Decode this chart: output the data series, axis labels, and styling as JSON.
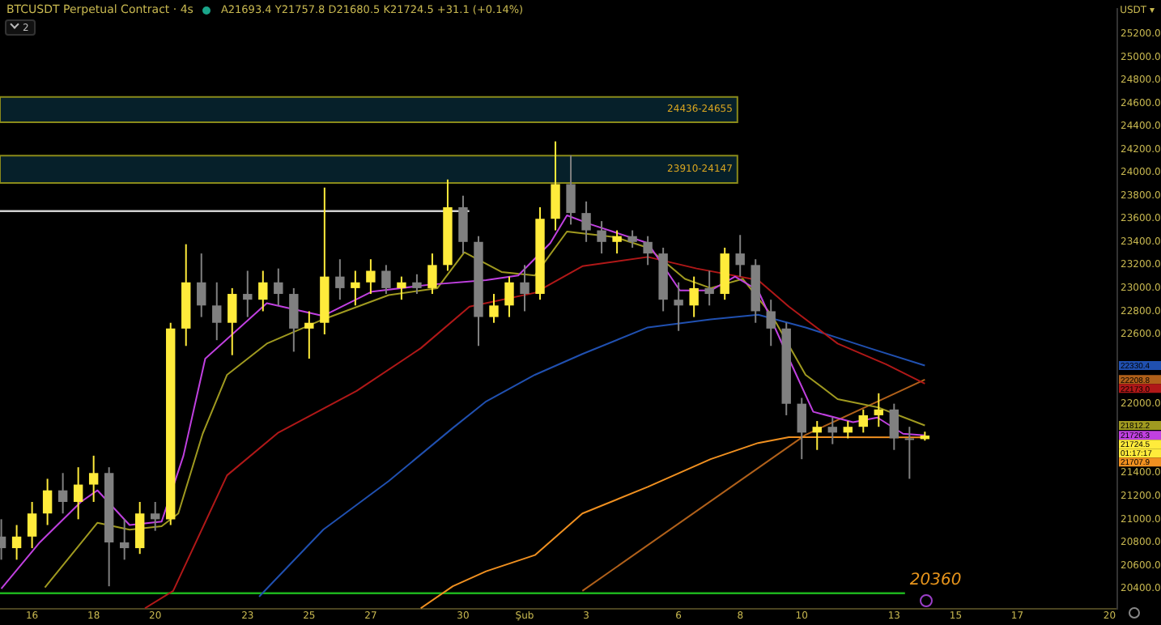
{
  "chart_data": {
    "type": "candlestick",
    "title": "BTCUSDT Perpetual Contract · 4s",
    "subtitle": "A21693.4 Y21757.8 D21680.5 K21724.5 +31.1 (+0.14%)",
    "ylabel": "USDT ▾",
    "x": [
      "--01-15T00:00",
      "--01-15T12:00",
      "--01-16T00:00",
      "--01-16T12:00",
      "--01-17T00:00",
      "--01-17T12:00",
      "--01-18T00:00",
      "--01-18T12:00",
      "--01-19T00:00",
      "--01-19T12:00",
      "--01-20T00:00",
      "--01-20T12:00",
      "--01-21T00:00",
      "--01-21T12:00",
      "--01-22T00:00",
      "--01-22T12:00",
      "--01-23T00:00",
      "--01-23T12:00",
      "--01-24T00:00",
      "--01-24T12:00",
      "--01-25T00:00",
      "--01-25T12:00",
      "--01-26T00:00",
      "--01-26T12:00",
      "--01-27T00:00",
      "--01-27T12:00",
      "--01-28T00:00",
      "--01-28T12:00",
      "--01-29T00:00",
      "--01-29T12:00",
      "--01-30T00:00",
      "--01-30T12:00",
      "--01-31T00:00",
      "--01-31T12:00",
      "--02-01T00:00",
      "--02-01T12:00",
      "--02-02T00:00",
      "--02-02T12:00",
      "--02-03T00:00",
      "--02-03T12:00",
      "--02-04T00:00",
      "--02-04T12:00",
      "--02-05T00:00",
      "--02-05T12:00",
      "--02-06T00:00",
      "--02-06T12:00",
      "--02-07T00:00",
      "--02-07T12:00",
      "--02-08T00:00",
      "--02-08T12:00",
      "--02-09T00:00",
      "--02-09T12:00",
      "--02-10T00:00",
      "--02-10T12:00",
      "--02-11T00:00",
      "--02-11T12:00",
      "--02-12T00:00",
      "--02-12T12:00",
      "--02-13T00:00",
      "--02-13T12:00",
      "--02-14T00:00"
    ],
    "ohlc": [
      [
        20850,
        21000,
        20650,
        20750
      ],
      [
        20750,
        20950,
        20650,
        20850
      ],
      [
        20850,
        21150,
        20750,
        21050
      ],
      [
        21050,
        21350,
        20950,
        21250
      ],
      [
        21250,
        21400,
        21050,
        21150
      ],
      [
        21150,
        21450,
        21000,
        21300
      ],
      [
        21300,
        21550,
        21150,
        21400
      ],
      [
        21400,
        21450,
        20420,
        20800
      ],
      [
        20800,
        21000,
        20650,
        20750
      ],
      [
        20750,
        21150,
        20700,
        21050
      ],
      [
        21050,
        21150,
        20900,
        21000
      ],
      [
        21000,
        22700,
        20950,
        22650
      ],
      [
        22650,
        23380,
        22500,
        23050
      ],
      [
        23050,
        23300,
        22750,
        22850
      ],
      [
        22850,
        23050,
        22550,
        22700
      ],
      [
        22700,
        23000,
        22420,
        22950
      ],
      [
        22950,
        23150,
        22750,
        22900
      ],
      [
        22900,
        23150,
        22800,
        23050
      ],
      [
        23050,
        23170,
        22850,
        22950
      ],
      [
        22950,
        23000,
        22450,
        22650
      ],
      [
        22650,
        22800,
        22390,
        22700
      ],
      [
        22700,
        23870,
        22600,
        23100
      ],
      [
        23100,
        23250,
        22900,
        23000
      ],
      [
        23000,
        23150,
        22850,
        23050
      ],
      [
        23050,
        23250,
        22950,
        23150
      ],
      [
        23150,
        23200,
        22950,
        23000
      ],
      [
        23000,
        23100,
        22900,
        23050
      ],
      [
        23050,
        23120,
        22950,
        23000
      ],
      [
        23000,
        23300,
        22950,
        23200
      ],
      [
        23200,
        23940,
        23150,
        23700
      ],
      [
        23700,
        23800,
        23300,
        23400
      ],
      [
        23400,
        23450,
        22500,
        22750
      ],
      [
        22750,
        22950,
        22700,
        22850
      ],
      [
        22850,
        23100,
        22750,
        23050
      ],
      [
        23050,
        23200,
        22800,
        22950
      ],
      [
        22950,
        23700,
        22900,
        23600
      ],
      [
        23600,
        24270,
        23500,
        23900
      ],
      [
        23900,
        24150,
        23550,
        23650
      ],
      [
        23650,
        23750,
        23400,
        23500
      ],
      [
        23500,
        23580,
        23300,
        23400
      ],
      [
        23400,
        23500,
        23300,
        23450
      ],
      [
        23450,
        23500,
        23350,
        23400
      ],
      [
        23400,
        23450,
        23200,
        23300
      ],
      [
        23300,
        23350,
        22800,
        22900
      ],
      [
        22900,
        23050,
        22630,
        22850
      ],
      [
        22850,
        23100,
        22750,
        23000
      ],
      [
        23000,
        23150,
        22850,
        22950
      ],
      [
        22950,
        23350,
        22900,
        23300
      ],
      [
        23300,
        23460,
        23100,
        23200
      ],
      [
        23200,
        23250,
        22700,
        22800
      ],
      [
        22800,
        22900,
        22500,
        22650
      ],
      [
        22650,
        22700,
        21900,
        22000
      ],
      [
        22000,
        22050,
        21520,
        21750
      ],
      [
        21750,
        21850,
        21600,
        21800
      ],
      [
        21800,
        21880,
        21650,
        21750
      ],
      [
        21750,
        21850,
        21700,
        21800
      ],
      [
        21800,
        21950,
        21750,
        21900
      ],
      [
        21900,
        22090,
        21800,
        21950
      ],
      [
        21950,
        22000,
        21600,
        21700
      ],
      [
        21700,
        21800,
        21350,
        21690
      ],
      [
        21693.4,
        21757.8,
        21680.5,
        21724.5
      ]
    ],
    "colors": [
      "#808080",
      "#ffeb3b",
      "#ffeb3b",
      "#ffeb3b",
      "#808080",
      "#ffeb3b",
      "#ffeb3b",
      "#808080",
      "#808080",
      "#ffeb3b",
      "#808080",
      "#ffeb3b",
      "#ffeb3b",
      "#808080",
      "#808080",
      "#ffeb3b",
      "#808080",
      "#ffeb3b",
      "#808080",
      "#808080",
      "#ffeb3b",
      "#ffeb3b",
      "#808080",
      "#ffeb3b",
      "#ffeb3b",
      "#808080",
      "#ffeb3b",
      "#808080",
      "#ffeb3b",
      "#ffeb3b",
      "#808080",
      "#808080",
      "#ffeb3b",
      "#ffeb3b",
      "#808080",
      "#ffeb3b",
      "#ffeb3b",
      "#808080",
      "#808080",
      "#808080",
      "#ffeb3b",
      "#808080",
      "#808080",
      "#808080",
      "#808080",
      "#ffeb3b",
      "#808080",
      "#ffeb3b",
      "#808080",
      "#808080",
      "#808080",
      "#808080",
      "#808080",
      "#ffeb3b",
      "#808080",
      "#ffeb3b",
      "#ffeb3b",
      "#ffeb3b",
      "#808080",
      "#808080",
      "#ffeb3b"
    ],
    "series": [
      {
        "type": "line",
        "color": "#c040e0",
        "x": [
          "--01-15T00:00",
          "--01-16T06:00",
          "--01-17T14:00",
          "--01-18T03:00",
          "--01-19T04:00",
          "--01-20T05:00",
          "--01-20T22:00",
          "--01-21T15:00",
          "--01-23T15:00",
          "--01-25T11:00",
          "--01-27T01:00",
          "--01-28T22:00",
          "--01-30T18:00",
          "--01-31T19:00",
          "--02-01T20:00",
          "--02-02T09:00",
          "--02-03T04:00",
          "--02-05T00:00",
          "--02-06T01:00",
          "--02-07T01:00",
          "--02-07T20:00",
          "--02-08T14:00",
          "--02-09T14:00",
          "--02-10T09:00",
          "--02-11T16:00",
          "--02-12T11:00",
          "--02-13T07:00",
          "--02-14T00:00"
        ],
        "values": [
          20400,
          20800,
          21150,
          21250,
          20950,
          20980,
          21550,
          22390,
          22870,
          22760,
          22970,
          23030,
          23070,
          23110,
          23390,
          23630,
          23550,
          23390,
          22980,
          22980,
          23100,
          22980,
          22390,
          21930,
          21840,
          21880,
          21740,
          21726.3
        ]
      },
      {
        "type": "line",
        "color": "#a09a20",
        "x": [
          "--01-16T10:00",
          "--01-18T03:00",
          "--01-19T04:00",
          "--01-20T05:00",
          "--01-20T18:00",
          "--01-21T13:00",
          "--01-22T08:00",
          "--01-23T15:00",
          "--01-25T11:00",
          "--01-27T14:00",
          "--01-29T04:00",
          "--01-30T01:00",
          "--01-31T06:00",
          "--02-01T08:00",
          "--02-02T09:00",
          "--02-03T23:00",
          "--02-05T00:00",
          "--02-06T05:00",
          "--02-07T01:00",
          "--02-08T02:00",
          "--02-09T01:00",
          "--02-10T03:00",
          "--02-11T04:00",
          "--02-12T11:00",
          "--02-14T00:00"
        ],
        "values": [
          20410,
          20970,
          20910,
          20940,
          21050,
          21740,
          22250,
          22520,
          22730,
          22940,
          23000,
          23310,
          23140,
          23110,
          23490,
          23440,
          23350,
          23080,
          23000,
          23080,
          22760,
          22250,
          22040,
          21970,
          21812.2
        ]
      },
      {
        "type": "line",
        "color": "#b01818",
        "x": [
          "--01-19T16:00",
          "--01-20T14:00",
          "--01-22T08:00",
          "--01-24T00:00",
          "--01-26T13:00",
          "--01-28T15:00",
          "--01-30T05:00",
          "--02-01T08:00",
          "--02-02T21:00",
          "--02-05T00:00",
          "--02-06T14:00",
          "--02-08T14:00",
          "--02-09T14:00",
          "--02-11T04:00",
          "--02-12T18:00",
          "--02-14T00:00"
        ],
        "values": [
          20230,
          20380,
          21380,
          21750,
          22110,
          22480,
          22840,
          22960,
          23190,
          23270,
          23170,
          23070,
          22840,
          22520,
          22340,
          22173.0
        ]
      },
      {
        "type": "line",
        "color": "#2050b0",
        "x": [
          "--01-23T09:00",
          "--01-25T11:00",
          "--01-27T14:00",
          "--01-29T16:00",
          "--01-30T18:00",
          "--02-01T08:00",
          "--02-02T21:00",
          "--02-05T00:00",
          "--02-07T01:00",
          "--02-08T14:00",
          "--02-10T03:00",
          "--02-12T05:00",
          "--02-14T00:00"
        ],
        "values": [
          20330,
          20910,
          21330,
          21790,
          22020,
          22250,
          22430,
          22660,
          22730,
          22770,
          22660,
          22480,
          22330.4
        ]
      },
      {
        "type": "line",
        "color": "#f09020",
        "x": [
          "--01-28T15:00",
          "--01-29T16:00",
          "--01-30T18:00",
          "--02-01T08:00",
          "--02-02T21:00",
          "--02-05T00:00",
          "--02-07T01:00",
          "--02-08T14:00",
          "--02-09T14:00",
          "--02-14T00:00"
        ],
        "values": [
          20230,
          20420,
          20550,
          20690,
          21050,
          21280,
          21520,
          21660,
          21710,
          21707.9
        ]
      },
      {
        "type": "line",
        "color": "#b0601a",
        "x": [
          "--02-02T21:00",
          "--02-10T03:00",
          "--02-14T00:00"
        ],
        "values": [
          20380,
          21730,
          22208.8
        ]
      }
    ],
    "xlim": [
      "--01-14T23:00",
      "--02-20T06:00"
    ],
    "xticks": [
      {
        "value": "--01-16",
        "label": "16"
      },
      {
        "value": "--01-18",
        "label": "18"
      },
      {
        "value": "--01-20",
        "label": "20"
      },
      {
        "value": "--01-23",
        "label": "23"
      },
      {
        "value": "--01-25",
        "label": "25"
      },
      {
        "value": "--01-27",
        "label": "27"
      },
      {
        "value": "--01-30",
        "label": "30"
      },
      {
        "value": "--02-01",
        "label": "Şub"
      },
      {
        "value": "--02-03",
        "label": "3"
      },
      {
        "value": "--02-06",
        "label": "6"
      },
      {
        "value": "--02-08",
        "label": "8"
      },
      {
        "value": "--02-10",
        "label": "10"
      },
      {
        "value": "--02-13",
        "label": "13"
      },
      {
        "value": "--02-15",
        "label": "15"
      },
      {
        "value": "--02-17",
        "label": "17"
      },
      {
        "value": "--02-20",
        "label": "20"
      }
    ],
    "ylim": [
      20225,
      25415
    ],
    "yticks": [
      {
        "value": 20400,
        "label": "20400.0"
      },
      {
        "value": 20600,
        "label": "20600.0"
      },
      {
        "value": 20800,
        "label": "20800.0"
      },
      {
        "value": 21000,
        "label": "21000.0"
      },
      {
        "value": 21200,
        "label": "21200.0"
      },
      {
        "value": 21400,
        "label": "21400.0"
      },
      {
        "value": 22000,
        "label": "22000.0"
      },
      {
        "value": 22600,
        "label": "22600.0"
      },
      {
        "value": 22800,
        "label": "22800.0"
      },
      {
        "value": 23000,
        "label": "23000.0"
      },
      {
        "value": 23200,
        "label": "23200.0"
      },
      {
        "value": 23400,
        "label": "23400.0"
      },
      {
        "value": 23600,
        "label": "23600.0"
      },
      {
        "value": 23800,
        "label": "23800.0"
      },
      {
        "value": 24000,
        "label": "24000.0"
      },
      {
        "value": 24200,
        "label": "24200.0"
      },
      {
        "value": 24400,
        "label": "24400.0"
      },
      {
        "value": 24600,
        "label": "24600.0"
      },
      {
        "value": 24800,
        "label": "24800.0"
      },
      {
        "value": 25000,
        "label": "25000.0"
      },
      {
        "value": 25200,
        "label": "25200.0"
      }
    ],
    "bands": [
      {
        "axis": "y",
        "from": 24436,
        "to": 24655,
        "label": "24436-24655",
        "color": "#06202a"
      },
      {
        "axis": "y",
        "from": 23910,
        "to": 24147,
        "label": "23910-24147",
        "color": "#06202a"
      }
    ],
    "ref_lines": [
      {
        "axis": "y",
        "value": 23667,
        "color": "#d0d0d0"
      },
      {
        "axis": "y",
        "value": 20360,
        "label": "20360",
        "color": "#1db31d"
      }
    ],
    "annotations": [
      "2",
      "22330.4",
      "22208.8",
      "22173.0",
      "21812.2",
      "21726.3",
      "21724.5",
      "01:17:17",
      "21707.9"
    ]
  }
}
